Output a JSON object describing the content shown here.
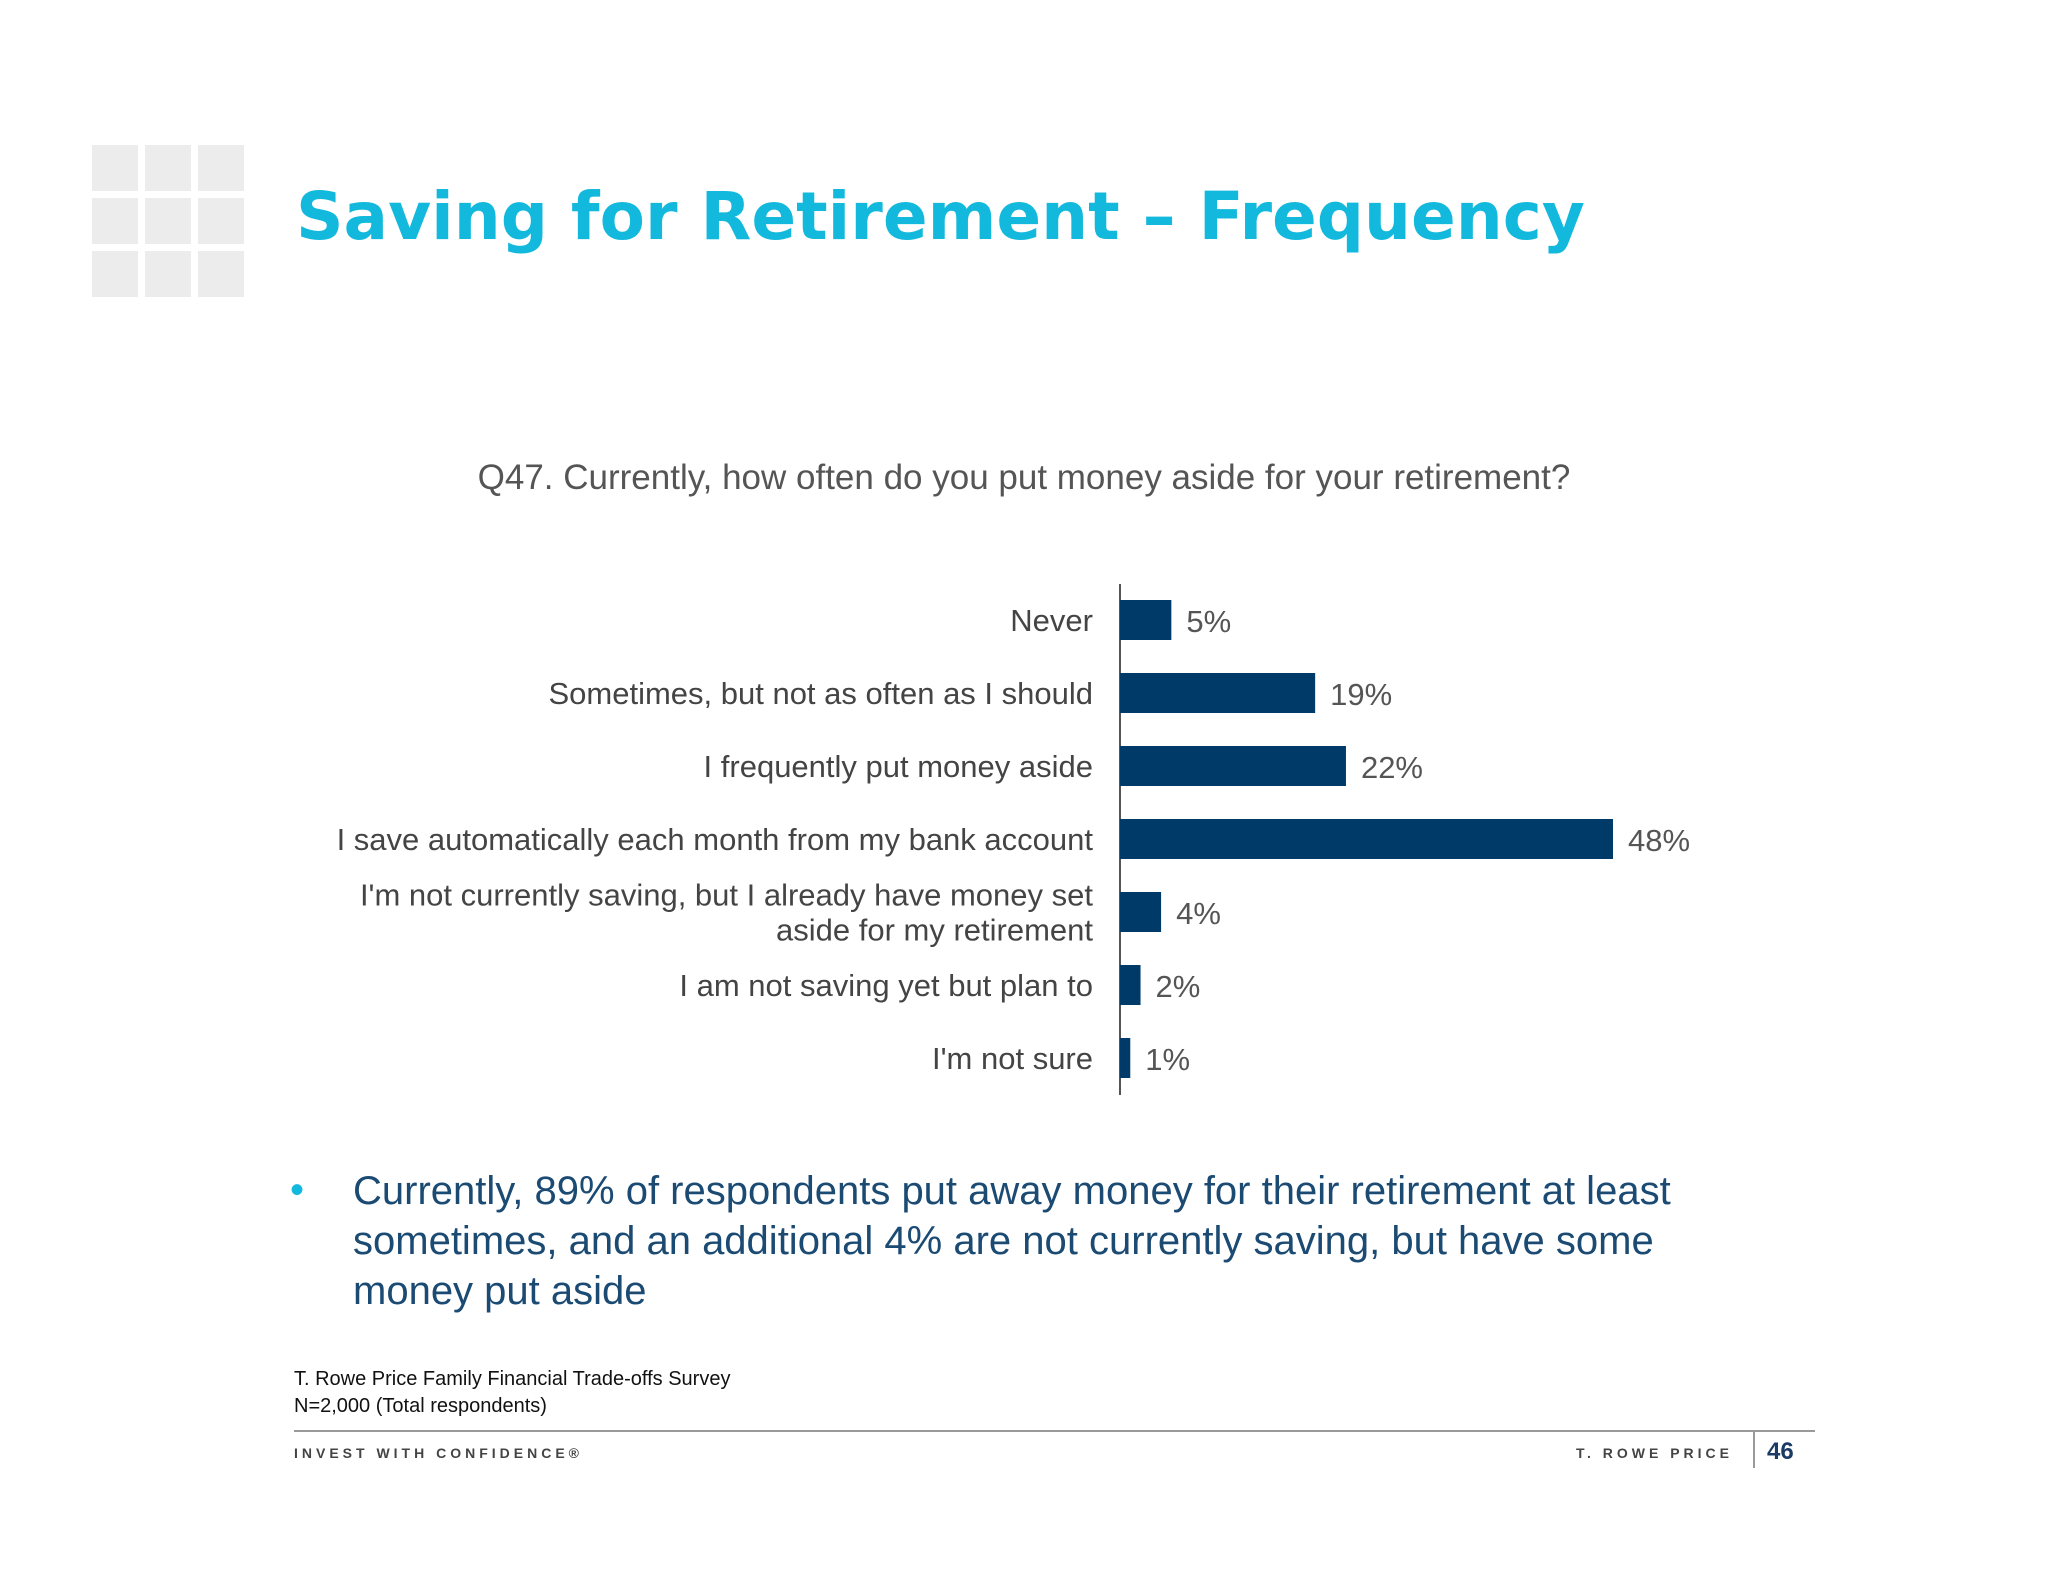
{
  "title": "Saving for Retirement – Frequency",
  "question": "Q47. Currently, how often do you put money aside for your retirement?",
  "chart_data": {
    "type": "bar",
    "orientation": "horizontal",
    "categories": [
      "Never",
      "Sometimes, but not as often as I should",
      "I frequently put money aside",
      "I save automatically each month from my bank account",
      "I'm not currently saving, but I already have money set aside for my retirement",
      "I am not saving yet but plan to",
      "I'm not sure"
    ],
    "category_lines": [
      [
        "Never"
      ],
      [
        "Sometimes, but not as often as I should"
      ],
      [
        "I frequently put money aside"
      ],
      [
        "I save automatically each month from my bank account"
      ],
      [
        "I'm not currently saving, but I already have money set",
        "aside for my retirement"
      ],
      [
        "I am not saving yet but plan to"
      ],
      [
        "I'm not sure"
      ]
    ],
    "values": [
      5,
      19,
      22,
      48,
      4,
      2,
      1
    ],
    "data_labels": [
      "5%",
      "19%",
      "22%",
      "48%",
      "4%",
      "2%",
      "1%"
    ],
    "unit": "%",
    "bar_color": "#003a68",
    "xlim": [
      0,
      48
    ],
    "grid": false,
    "legend": "none"
  },
  "bullet": {
    "marker": "•",
    "text": "Currently, 89% of respondents put away money for their retirement at least sometimes, and an additional 4% are not currently saving, but have some money put aside"
  },
  "source": {
    "line1": "T. Rowe Price Family Financial Trade-offs Survey",
    "line2": "N=2,000 (Total respondents)"
  },
  "footer": {
    "tagline": "INVEST WITH CONFIDENCE®",
    "brand": "T. ROWE PRICE",
    "page_number": "46"
  },
  "colors": {
    "title": "#13b9dc",
    "bar": "#003a68",
    "bullet_text": "#1b4a73",
    "bullet_marker": "#13b9dc"
  }
}
